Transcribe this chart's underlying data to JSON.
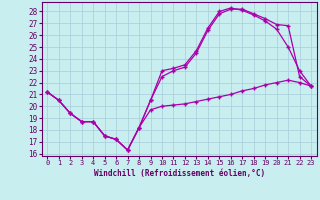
{
  "xlabel": "Windchill (Refroidissement éolien,°C)",
  "bg_color": "#c8eef0",
  "grid_color": "#a8ccd8",
  "line_color": "#aa00aa",
  "xlim": [
    -0.5,
    23.5
  ],
  "ylim": [
    15.8,
    28.8
  ],
  "xticks": [
    0,
    1,
    2,
    3,
    4,
    5,
    6,
    7,
    8,
    9,
    10,
    11,
    12,
    13,
    14,
    15,
    16,
    17,
    18,
    19,
    20,
    21,
    22,
    23
  ],
  "yticks": [
    16,
    17,
    18,
    19,
    20,
    21,
    22,
    23,
    24,
    25,
    26,
    27,
    28
  ],
  "line1_x": [
    0,
    1,
    2,
    3,
    4,
    5,
    6,
    7,
    8,
    9,
    10,
    11,
    12,
    13,
    14,
    15,
    16,
    17,
    18,
    19,
    20,
    21,
    22,
    23
  ],
  "line1_y": [
    21.2,
    20.5,
    19.4,
    18.7,
    18.7,
    17.5,
    17.2,
    16.3,
    18.2,
    19.7,
    20.0,
    20.1,
    20.2,
    20.4,
    20.6,
    20.8,
    21.0,
    21.3,
    21.5,
    21.8,
    22.0,
    22.2,
    22.0,
    21.7
  ],
  "line2_x": [
    0,
    1,
    2,
    3,
    4,
    5,
    6,
    7,
    8,
    9,
    10,
    11,
    12,
    13,
    14,
    15,
    16,
    17,
    18,
    19,
    20,
    21,
    22,
    23
  ],
  "line2_y": [
    21.2,
    20.5,
    19.4,
    18.7,
    18.7,
    17.5,
    17.2,
    16.3,
    18.2,
    20.5,
    22.5,
    23.0,
    23.3,
    24.5,
    26.4,
    27.8,
    28.2,
    28.2,
    27.8,
    27.4,
    26.9,
    26.8,
    22.5,
    21.7
  ],
  "line3_x": [
    0,
    1,
    2,
    3,
    4,
    5,
    6,
    7,
    8,
    9,
    10,
    11,
    12,
    13,
    14,
    15,
    16,
    17,
    18,
    19,
    20,
    21,
    22,
    23
  ],
  "line3_y": [
    21.2,
    20.5,
    19.4,
    18.7,
    18.7,
    17.5,
    17.2,
    16.3,
    18.2,
    20.5,
    23.0,
    23.2,
    23.5,
    24.7,
    26.6,
    28.0,
    28.3,
    28.1,
    27.7,
    27.2,
    26.5,
    25.0,
    23.0,
    21.7
  ]
}
